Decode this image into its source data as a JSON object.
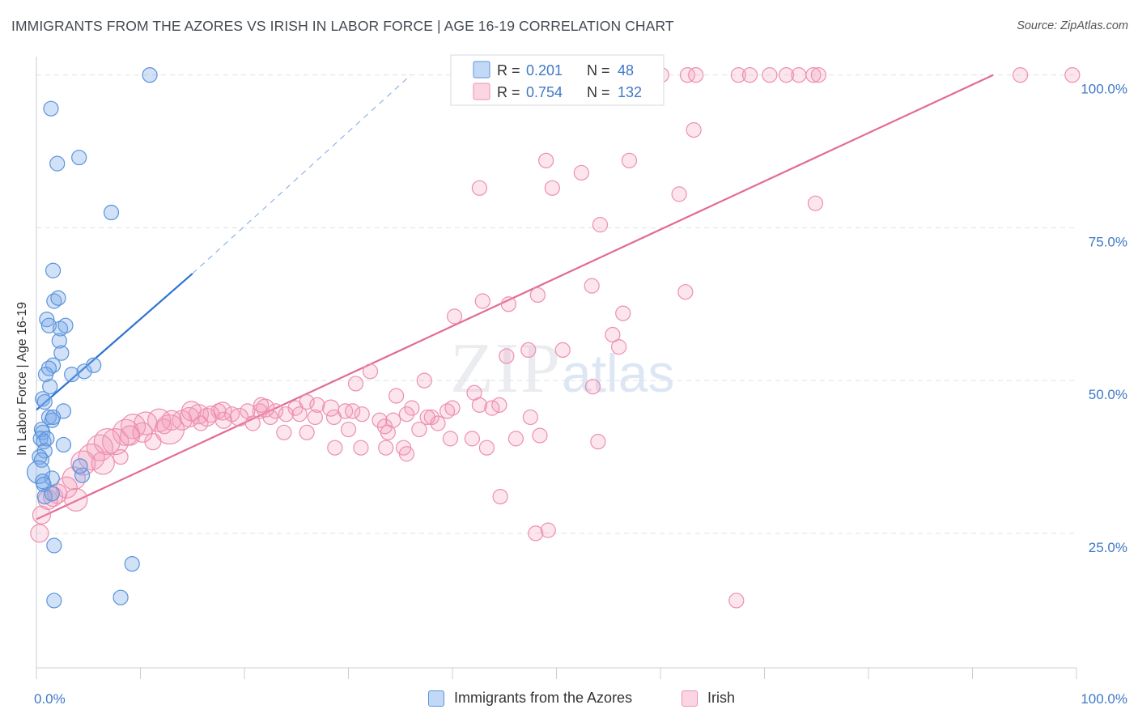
{
  "title": "IMMIGRANTS FROM THE AZORES VS IRISH IN LABOR FORCE | AGE 16-19 CORRELATION CHART",
  "source": "Source: ZipAtlas.com",
  "watermark": {
    "zip": "ZIP",
    "atlas": "atlas"
  },
  "colors": {
    "azores_fill": "rgba(120,170,235,0.35)",
    "azores_stroke": "#5b93d9",
    "azores_line": "#2f74d0",
    "irish_fill": "rgba(245,150,185,0.25)",
    "irish_stroke": "#ec8fb0",
    "irish_line": "#e26b95",
    "tick_label": "#3f78c7",
    "grid": "#dde1e6"
  },
  "legend": {
    "r_label": "R =",
    "n_label": "N =",
    "azores": {
      "r": "0.201",
      "n": "48"
    },
    "irish": {
      "r": "0.754",
      "n": "132"
    }
  },
  "bottom_legend": {
    "azores": "Immigrants from the Azores",
    "irish": "Irish"
  },
  "chart_data": {
    "type": "scatter",
    "title": "IMMIGRANTS FROM THE AZORES VS IRISH IN LABOR FORCE | AGE 16-19 CORRELATION CHART",
    "xlabel": "",
    "ylabel": "In Labor Force | Age 16-19",
    "xlim": [
      0,
      100
    ],
    "ylim": [
      3,
      103
    ],
    "x_tick_labels": [
      "0.0%",
      "100.0%"
    ],
    "y_ticks": [
      25,
      50,
      75,
      100
    ],
    "y_tick_labels": [
      "25.0%",
      "50.0%",
      "75.0%",
      "100.0%"
    ],
    "grid": true,
    "legend_position": "top-center",
    "series": [
      {
        "name": "Immigrants from the Azores",
        "r": 0.201,
        "n": 48,
        "trend": {
          "x0": 0,
          "y0": 45.2,
          "x1": 15.0,
          "y1": 67.5,
          "extended_x1": 36.0,
          "extended_y1": 100.0
        },
        "points": [
          [
            10.9,
            100
          ],
          [
            1.4,
            94.5
          ],
          [
            2.0,
            85.5
          ],
          [
            4.1,
            86.5
          ],
          [
            7.2,
            77.5
          ],
          [
            1.6,
            68
          ],
          [
            1.7,
            63
          ],
          [
            2.1,
            63.5
          ],
          [
            1.0,
            60
          ],
          [
            1.2,
            59
          ],
          [
            2.3,
            58.5
          ],
          [
            2.8,
            59
          ],
          [
            2.2,
            56.5
          ],
          [
            2.4,
            54.5
          ],
          [
            1.6,
            52.5
          ],
          [
            1.2,
            52
          ],
          [
            0.9,
            51
          ],
          [
            3.4,
            51
          ],
          [
            4.6,
            51.5
          ],
          [
            5.5,
            52.5
          ],
          [
            1.3,
            49
          ],
          [
            0.6,
            47
          ],
          [
            0.8,
            46.5
          ],
          [
            2.6,
            45
          ],
          [
            1.2,
            44
          ],
          [
            1.5,
            43.5
          ],
          [
            1.6,
            44
          ],
          [
            0.5,
            42
          ],
          [
            0.6,
            41.5
          ],
          [
            0.4,
            40.5
          ],
          [
            0.7,
            40
          ],
          [
            1.0,
            40.5
          ],
          [
            2.6,
            39.5
          ],
          [
            0.8,
            38.5
          ],
          [
            0.3,
            37.5
          ],
          [
            0.5,
            37
          ],
          [
            0.2,
            35
          ],
          [
            1.5,
            34
          ],
          [
            4.4,
            34.5
          ],
          [
            4.2,
            36
          ],
          [
            0.6,
            33.5
          ],
          [
            0.7,
            33
          ],
          [
            0.8,
            31
          ],
          [
            1.7,
            23
          ],
          [
            9.2,
            20
          ],
          [
            1.7,
            14
          ],
          [
            8.1,
            14.5
          ],
          [
            1.5,
            31.5
          ]
        ],
        "sizes": [
          9,
          9,
          9,
          9,
          9,
          9,
          9,
          9,
          9,
          9,
          9,
          9,
          9,
          9,
          9,
          9,
          9,
          9,
          9,
          9,
          9,
          9,
          9,
          9,
          9,
          9,
          9,
          9,
          9,
          9,
          9,
          9,
          9,
          9,
          9,
          9,
          14,
          9,
          9,
          9,
          9,
          9,
          9,
          9,
          9,
          9,
          9,
          9
        ]
      },
      {
        "name": "Irish",
        "r": 0.754,
        "n": 132,
        "trend": {
          "x0": 0,
          "y0": 27.3,
          "x1": 92.0,
          "y1": 100.0
        },
        "points": [
          [
            47.4,
            100
          ],
          [
            52.1,
            100
          ],
          [
            52.8,
            100
          ],
          [
            55.5,
            100
          ],
          [
            56.5,
            100
          ],
          [
            58.5,
            100
          ],
          [
            60.1,
            100
          ],
          [
            62.6,
            100
          ],
          [
            63.4,
            100
          ],
          [
            67.5,
            100
          ],
          [
            68.6,
            100
          ],
          [
            70.5,
            100
          ],
          [
            72.1,
            100
          ],
          [
            73.3,
            100
          ],
          [
            74.7,
            100
          ],
          [
            75.2,
            100
          ],
          [
            94.6,
            100
          ],
          [
            99.6,
            100
          ],
          [
            63.2,
            91
          ],
          [
            49.0,
            86
          ],
          [
            57.0,
            86
          ],
          [
            52.4,
            84
          ],
          [
            42.6,
            81.5
          ],
          [
            49.6,
            81.5
          ],
          [
            61.8,
            80.5
          ],
          [
            74.9,
            79
          ],
          [
            54.2,
            75.5
          ],
          [
            53.4,
            65.5
          ],
          [
            62.4,
            64.5
          ],
          [
            48.2,
            64
          ],
          [
            42.9,
            63
          ],
          [
            45.4,
            62.5
          ],
          [
            40.2,
            60.5
          ],
          [
            56.4,
            61
          ],
          [
            55.4,
            57.5
          ],
          [
            56.0,
            55.5
          ],
          [
            47.3,
            55
          ],
          [
            45.2,
            54
          ],
          [
            32.1,
            51.5
          ],
          [
            37.3,
            50
          ],
          [
            30.7,
            49.5
          ],
          [
            53.5,
            49
          ],
          [
            34.6,
            47.5
          ],
          [
            42.1,
            48
          ],
          [
            44.5,
            46
          ],
          [
            26.0,
            46.5
          ],
          [
            27.0,
            46
          ],
          [
            36.1,
            45.5
          ],
          [
            39.5,
            45
          ],
          [
            24.9,
            45.5
          ],
          [
            23.0,
            45
          ],
          [
            20.3,
            45
          ],
          [
            18.8,
            44.5
          ],
          [
            17.5,
            45
          ],
          [
            16.4,
            44
          ],
          [
            15.6,
            44.5
          ],
          [
            14.7,
            44
          ],
          [
            14.0,
            43.5
          ],
          [
            13.0,
            43.5
          ],
          [
            11.8,
            43.5
          ],
          [
            10.5,
            43
          ],
          [
            9.3,
            42.5
          ],
          [
            8.6,
            41.5
          ],
          [
            7.6,
            40
          ],
          [
            6.8,
            40
          ],
          [
            6.1,
            39
          ],
          [
            5.3,
            37.5
          ],
          [
            4.5,
            36.5
          ],
          [
            3.6,
            34
          ],
          [
            2.9,
            32.5
          ],
          [
            2.0,
            31.5
          ],
          [
            1.6,
            31
          ],
          [
            1.1,
            30.5
          ],
          [
            0.5,
            28
          ],
          [
            0.3,
            25
          ],
          [
            21.5,
            45
          ],
          [
            22.5,
            44
          ],
          [
            24.0,
            44.5
          ],
          [
            28.6,
            44
          ],
          [
            29.7,
            45
          ],
          [
            31.3,
            44.5
          ],
          [
            33.0,
            43.5
          ],
          [
            35.6,
            44.5
          ],
          [
            38.0,
            44
          ],
          [
            40.0,
            45.5
          ],
          [
            42.6,
            46
          ],
          [
            43.8,
            45.5
          ],
          [
            20.8,
            43
          ],
          [
            23.8,
            41.5
          ],
          [
            26.0,
            41.5
          ],
          [
            30.0,
            42
          ],
          [
            33.5,
            42.5
          ],
          [
            34.3,
            43.5
          ],
          [
            36.8,
            42
          ],
          [
            38.6,
            43
          ],
          [
            15.8,
            43
          ],
          [
            12.3,
            42.5
          ],
          [
            11.2,
            40
          ],
          [
            10.2,
            41.5
          ],
          [
            19.5,
            44
          ],
          [
            18.0,
            43.5
          ],
          [
            16.8,
            44.5
          ],
          [
            26.8,
            44
          ],
          [
            25.3,
            44.5
          ],
          [
            37.6,
            44
          ],
          [
            39.8,
            40.5
          ],
          [
            41.9,
            40.5
          ],
          [
            43.3,
            39
          ],
          [
            46.1,
            40.5
          ],
          [
            48.4,
            41
          ],
          [
            54.0,
            40
          ],
          [
            44.6,
            31
          ],
          [
            47.5,
            44
          ],
          [
            28.7,
            39
          ],
          [
            31.2,
            39
          ],
          [
            33.6,
            39
          ],
          [
            35.3,
            39
          ],
          [
            35.6,
            38
          ],
          [
            33.8,
            41.5
          ],
          [
            48.0,
            25
          ],
          [
            49.2,
            25.5
          ],
          [
            50.6,
            55
          ],
          [
            67.3,
            14
          ],
          [
            8.1,
            37.5
          ],
          [
            6.4,
            36.5
          ],
          [
            3.8,
            30.5
          ],
          [
            12.8,
            42
          ],
          [
            9.0,
            41
          ],
          [
            14.9,
            45
          ],
          [
            17.9,
            45
          ],
          [
            22.0,
            45.5
          ],
          [
            28.3,
            45.5
          ],
          [
            30.4,
            45
          ],
          [
            21.6,
            46
          ]
        ],
        "sizes": [
          9,
          9,
          9,
          9,
          9,
          9,
          9,
          9,
          9,
          9,
          9,
          9,
          9,
          9,
          9,
          9,
          9,
          9,
          9,
          9,
          9,
          9,
          9,
          9,
          9,
          9,
          9,
          9,
          9,
          9,
          9,
          9,
          9,
          9,
          9,
          9,
          9,
          9,
          9,
          9,
          9,
          9,
          9,
          9,
          9,
          9,
          9,
          9,
          9,
          9,
          9,
          9,
          9,
          9,
          11,
          12,
          12,
          12,
          12,
          14,
          14,
          15,
          16,
          16,
          16,
          16,
          16,
          15,
          14,
          13,
          12,
          12,
          12,
          11,
          11,
          9,
          9,
          9,
          9,
          9,
          9,
          9,
          9,
          9,
          9,
          9,
          9,
          9,
          9,
          9,
          9,
          9,
          9,
          9,
          9,
          9,
          9,
          10,
          12,
          11,
          10,
          10,
          9,
          9,
          9,
          9,
          9,
          9,
          9,
          9,
          9,
          9,
          9,
          9,
          9,
          9,
          9,
          9,
          9,
          9,
          9,
          9,
          9,
          9,
          14,
          14,
          18,
          12,
          12,
          11,
          11,
          10,
          9,
          9,
          9
        ]
      }
    ]
  }
}
